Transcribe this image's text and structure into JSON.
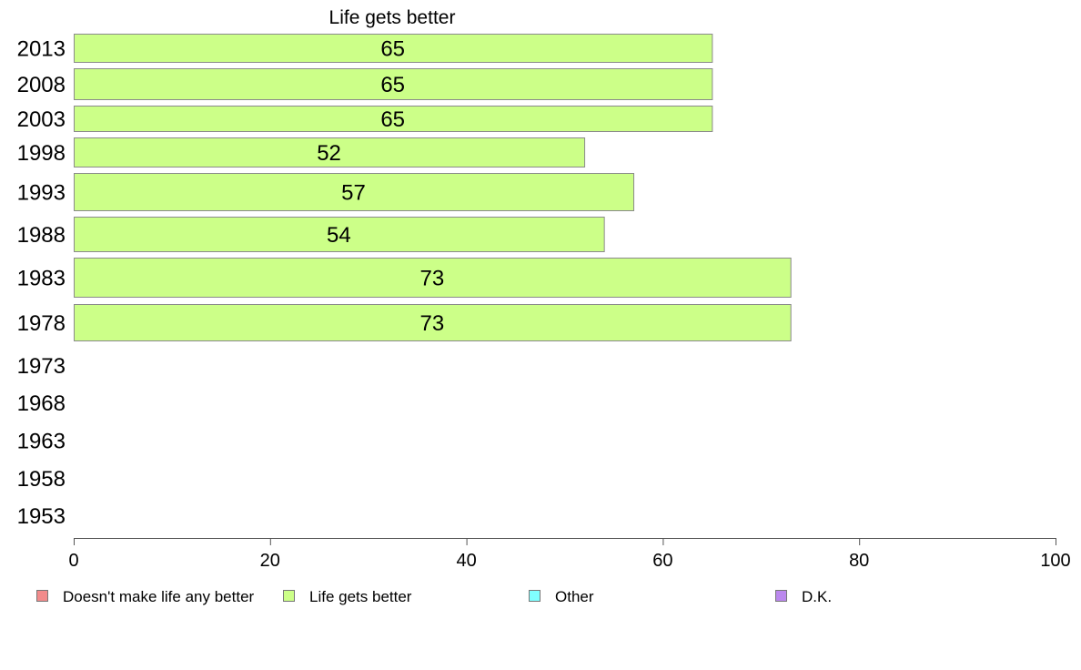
{
  "chart_data": {
    "type": "bar",
    "orientation": "horizontal",
    "title": "Life gets better",
    "categories": [
      "2013",
      "2008",
      "2003",
      "1998",
      "1993",
      "1988",
      "1983",
      "1978",
      "1973",
      "1968",
      "1963",
      "1958",
      "1953"
    ],
    "series": [
      {
        "name": "Life gets better",
        "color": "#ccff88",
        "values": [
          65,
          65,
          65,
          52,
          57,
          54,
          73,
          73,
          null,
          null,
          null,
          null,
          null
        ]
      }
    ],
    "data_labels": [
      "65",
      "65",
      "65",
      "52",
      "57",
      "54",
      "73",
      "73",
      "",
      "",
      "",
      "",
      ""
    ],
    "xlim": [
      0,
      100
    ],
    "x_ticks": [
      "0",
      "20",
      "40",
      "60",
      "80",
      "100"
    ],
    "xlabel": "",
    "ylabel": "",
    "grid": false,
    "legend_position": "bottom",
    "legend": [
      {
        "label": "Doesn't make life any better",
        "color": "#f28b8b"
      },
      {
        "label": "Life gets better",
        "color": "#ccff88"
      },
      {
        "label": "Other",
        "color": "#80ffff"
      },
      {
        "label": "D.K.",
        "color": "#bb88ee"
      }
    ]
  }
}
